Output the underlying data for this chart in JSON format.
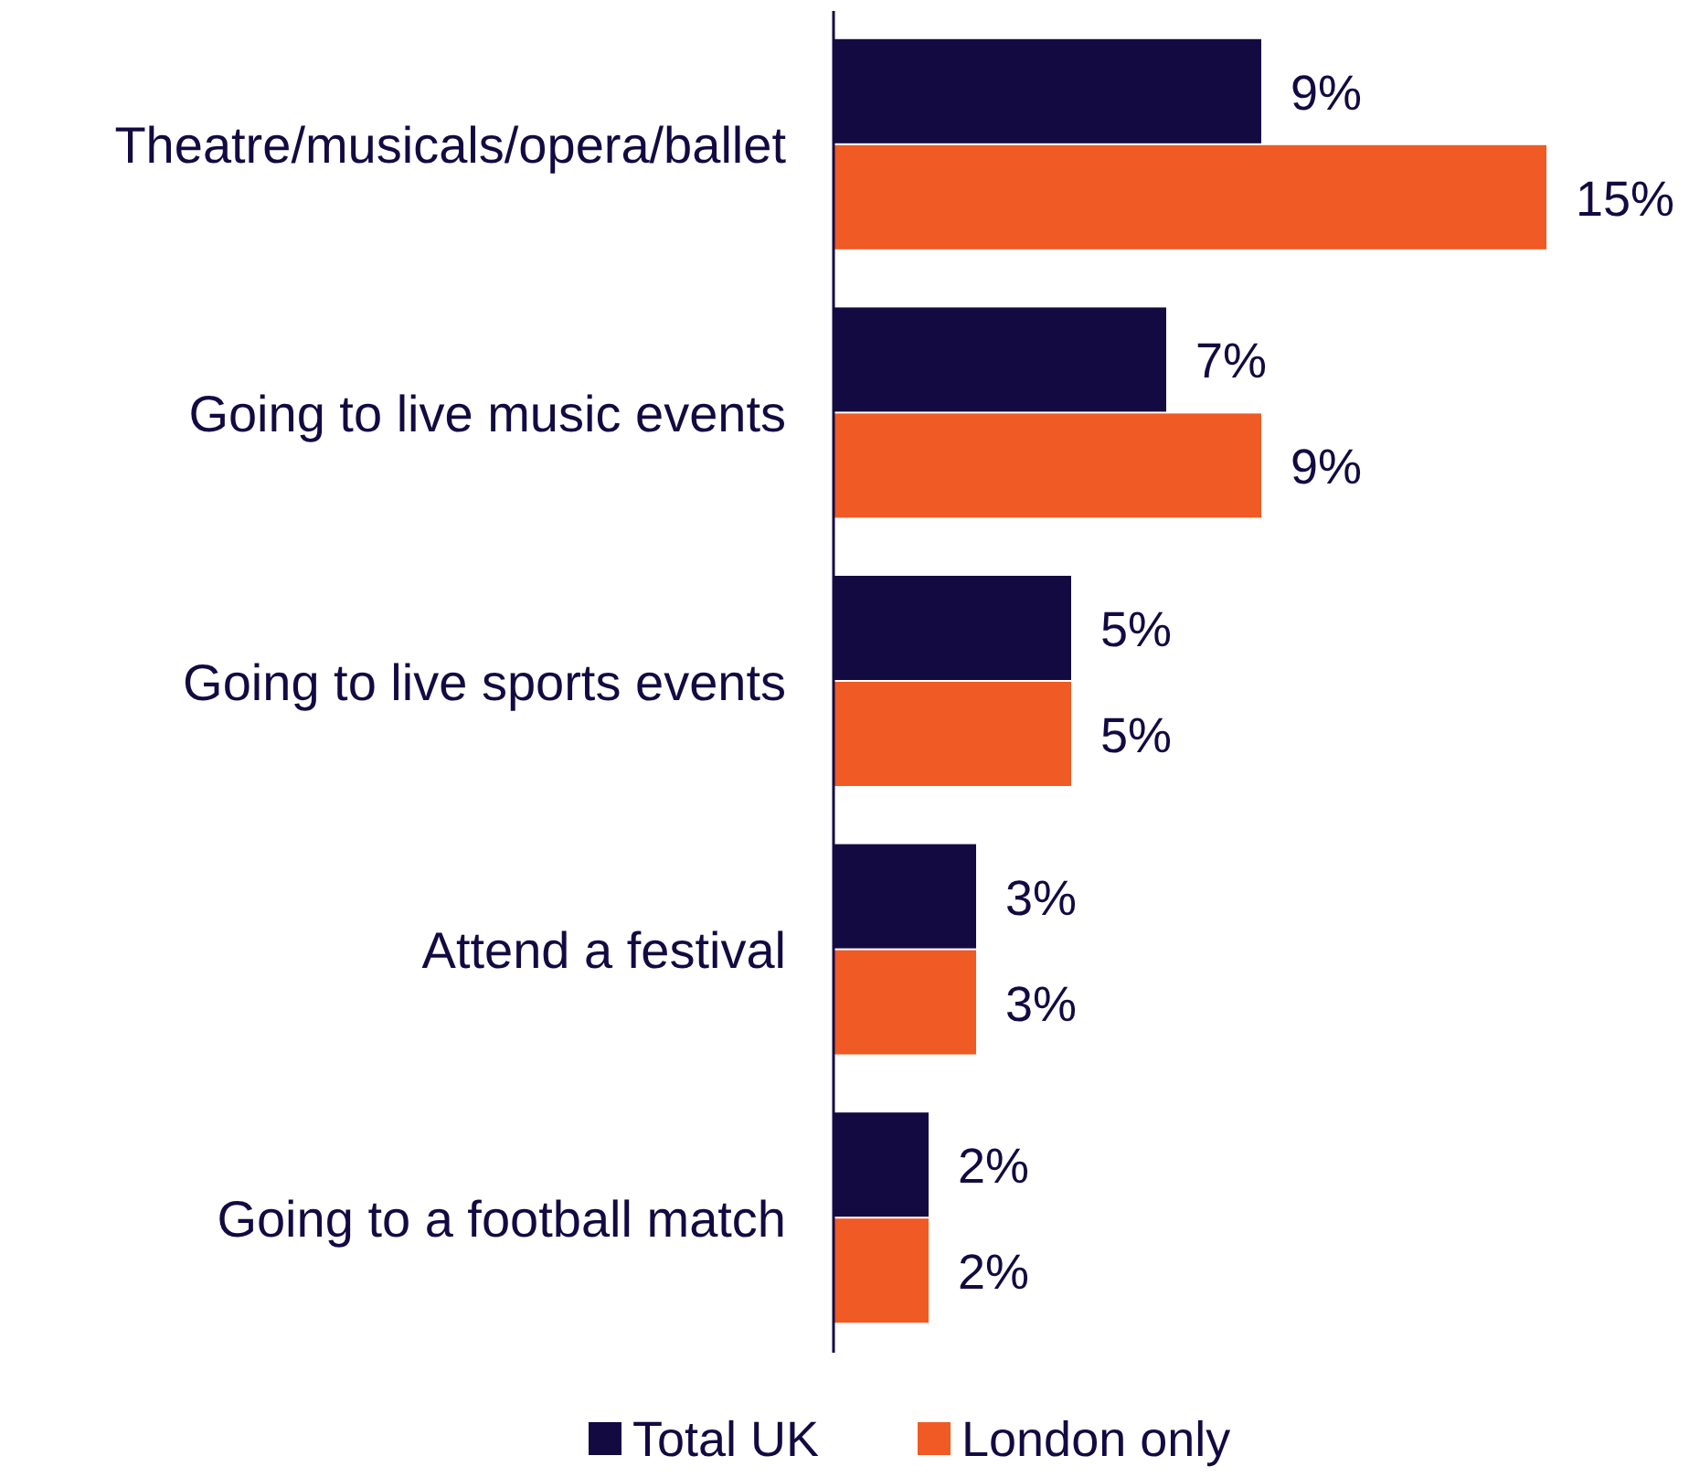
{
  "chart_data": {
    "type": "bar",
    "orientation": "horizontal",
    "categories": [
      "Theatre/musicals/opera/ballet",
      "Going to live music events",
      "Going to live sports events",
      "Attend a festival",
      "Going to a football match"
    ],
    "series": [
      {
        "name": "Total UK",
        "color": "#140a42",
        "values": [
          9,
          7,
          5,
          3,
          2
        ],
        "value_labels": [
          "9%",
          "7%",
          "5%",
          "3%",
          "2%"
        ]
      },
      {
        "name": "London only",
        "color": "#f05a24",
        "values": [
          15,
          9,
          5,
          3,
          2
        ],
        "value_labels": [
          "15%",
          "9%",
          "5%",
          "3%",
          "2%"
        ]
      }
    ],
    "legend": "bottom"
  }
}
